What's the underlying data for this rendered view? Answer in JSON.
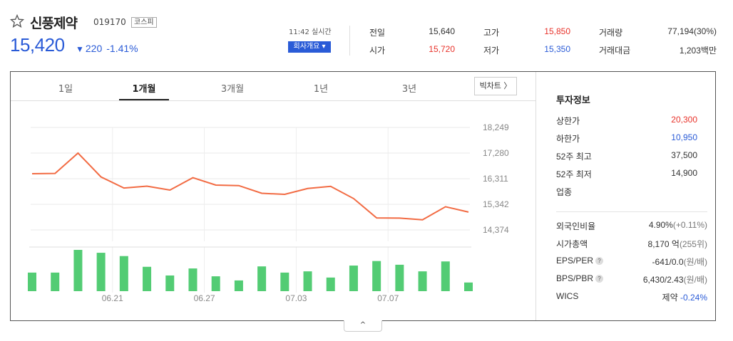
{
  "stock": {
    "name": "신풍제약",
    "code": "019170",
    "market": "코스피",
    "price": "15,420",
    "change_arrow": "▼",
    "change": "220",
    "change_pct": "-1.41%"
  },
  "realtime_label": "11:42 실시간",
  "company_button": "회사개요 ▾",
  "quotes": [
    {
      "label": "전일",
      "value": "15,640",
      "color": "#333333"
    },
    {
      "label": "고가",
      "value": "15,850",
      "color": "#e8322a"
    },
    {
      "label": "거래량",
      "value": "77,194(30%)",
      "color": "#333333"
    },
    {
      "label": "시가",
      "value": "15,720",
      "color": "#e8322a"
    },
    {
      "label": "저가",
      "value": "15,350",
      "color": "#2a5bd7"
    },
    {
      "label": "거래대금",
      "value": "1,203백만",
      "color": "#333333"
    }
  ],
  "tabs": [
    "1일",
    "1개월",
    "3개월",
    "1년",
    "3년"
  ],
  "active_tab": "1개월",
  "bigchart_label": "빅차트 〉",
  "chart_data": {
    "type": "line",
    "price_ticks": [
      "18,249",
      "17,280",
      "16,311",
      "15,342",
      "14,374"
    ],
    "ylim": [
      14374,
      18249
    ],
    "x_ticks": [
      "06.21",
      "06.27",
      "07.03",
      "07.07"
    ],
    "x_tick_index": [
      4,
      8,
      12,
      16
    ],
    "series": [
      {
        "values": [
          16500,
          16510,
          17280,
          16380,
          15960,
          16030,
          15880,
          16350,
          16070,
          16050,
          15760,
          15720,
          15940,
          16020,
          15560,
          14830,
          14820,
          14760,
          15250,
          15050
        ],
        "color": "#f26b43"
      }
    ],
    "volume": {
      "values": [
        45,
        45,
        100,
        93,
        85,
        59,
        38,
        55,
        36,
        26,
        60,
        45,
        48,
        33,
        62,
        73,
        64,
        48,
        72,
        21
      ],
      "color": "#53cc74"
    }
  },
  "info": {
    "title": "투자정보",
    "rows_top": [
      {
        "label": "상한가",
        "value": "20,300",
        "color": "#e8322a"
      },
      {
        "label": "하한가",
        "value": "10,950",
        "color": "#2a5bd7"
      },
      {
        "label": "52주 최고",
        "value": "37,500",
        "color": "#333333"
      },
      {
        "label": "52주 최저",
        "value": "14,900",
        "color": "#333333"
      },
      {
        "label": "업종",
        "value": "",
        "color": "#333333"
      }
    ],
    "foreign_label": "외국인비율",
    "foreign_value": "4.90%",
    "foreign_change": "(+0.11%)",
    "mcap_label": "시가총액",
    "mcap_value": "8,170 억",
    "mcap_rank": "(255위)",
    "eps_label": "EPS/PER",
    "eps_value": "-641/0.0",
    "eps_unit": "(원/배)",
    "bps_label": "BPS/PBR",
    "bps_value": "6,430/2.43",
    "bps_unit": "(원/배)",
    "wics_label": "WICS",
    "wics_value": "제약",
    "wics_change": "-0.24%",
    "help_mark": "?"
  },
  "collapse_label": "^"
}
